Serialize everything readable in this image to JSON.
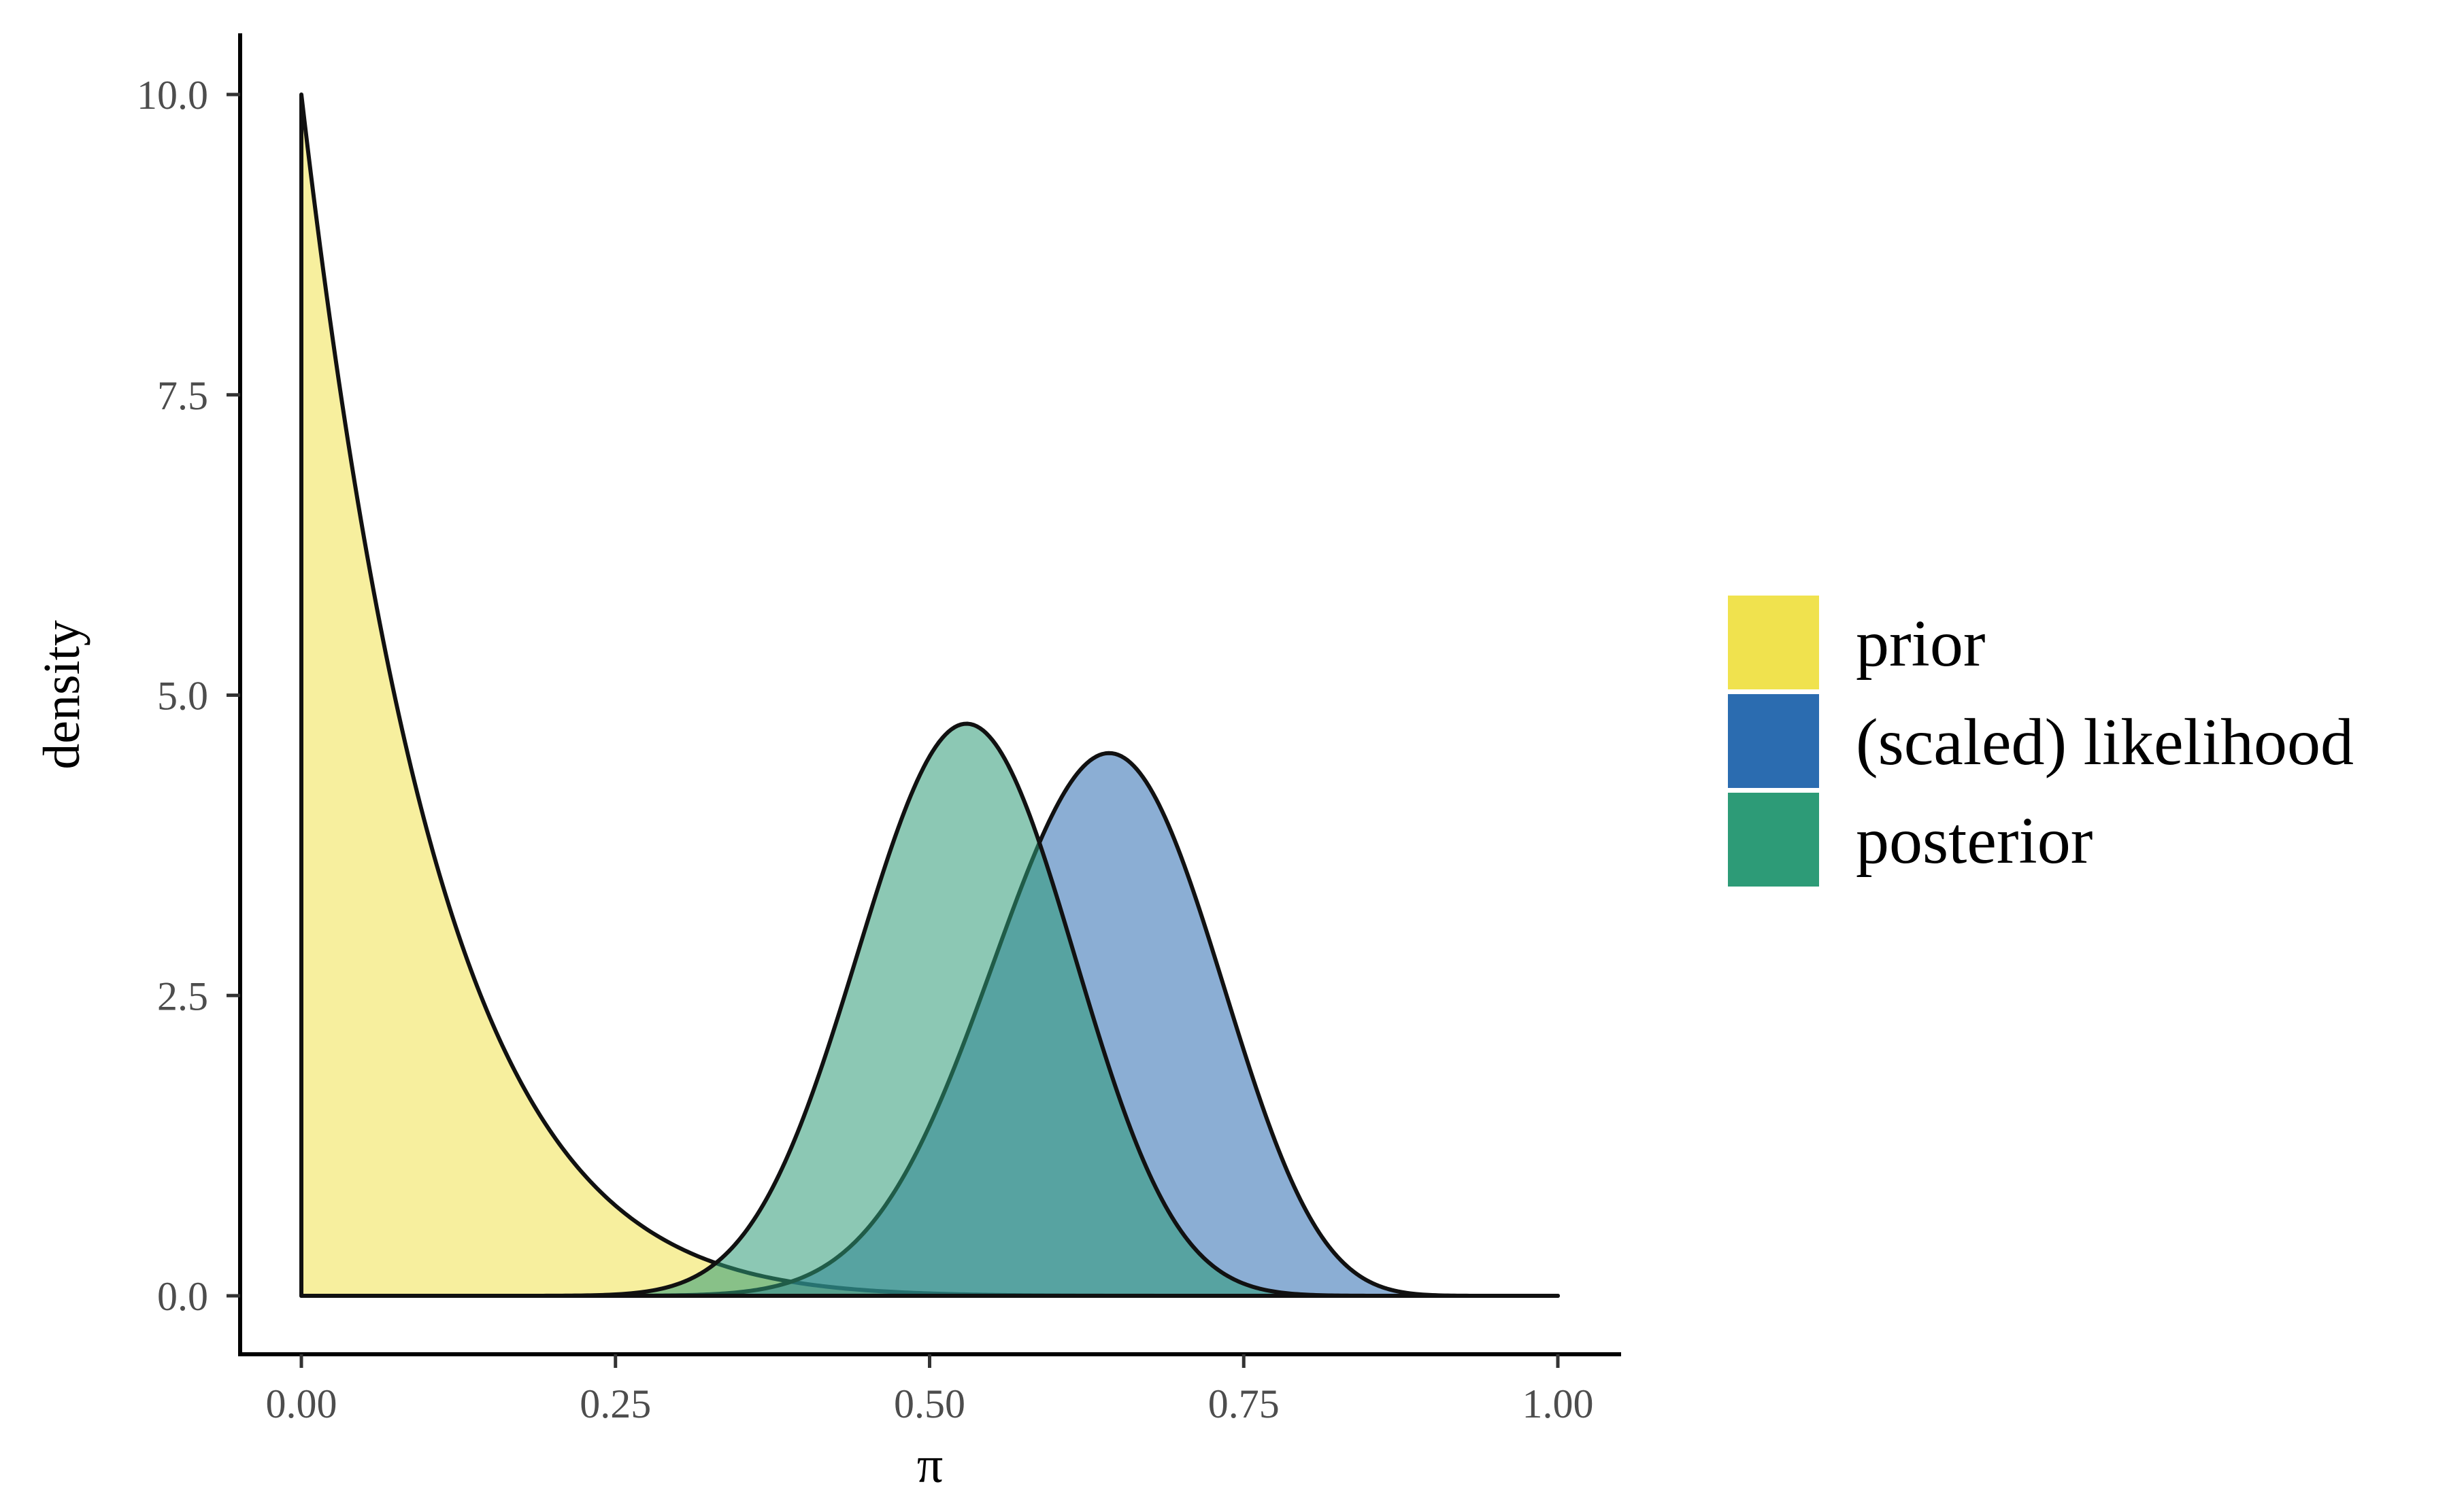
{
  "chart_data": {
    "type": "area",
    "xlabel": "π",
    "ylabel": "density",
    "xlim": [
      0,
      1
    ],
    "ylim": [
      0,
      10
    ],
    "x_ticks": [
      "0.00",
      "0.25",
      "0.50",
      "0.75",
      "1.00"
    ],
    "y_ticks": [
      "0.0",
      "2.5",
      "5.0",
      "7.5",
      "10.0"
    ],
    "grid": false,
    "legend_position": "right",
    "series": [
      {
        "name": "prior",
        "distribution": "beta",
        "alpha": 1,
        "beta": 10,
        "color": "#F0E24E",
        "mode": 0.0,
        "peak_density": 10.0
      },
      {
        "name": "(scaled) likelihood",
        "distribution": "beta",
        "alpha": 19,
        "beta": 11,
        "color": "#2B6CB0",
        "mode": 0.65,
        "peak_density": 5.38
      },
      {
        "name": "posterior",
        "distribution": "beta",
        "alpha": 19,
        "beta": 17,
        "color": "#2D9B77",
        "mode": 0.53,
        "peak_density": 5.65
      }
    ]
  }
}
